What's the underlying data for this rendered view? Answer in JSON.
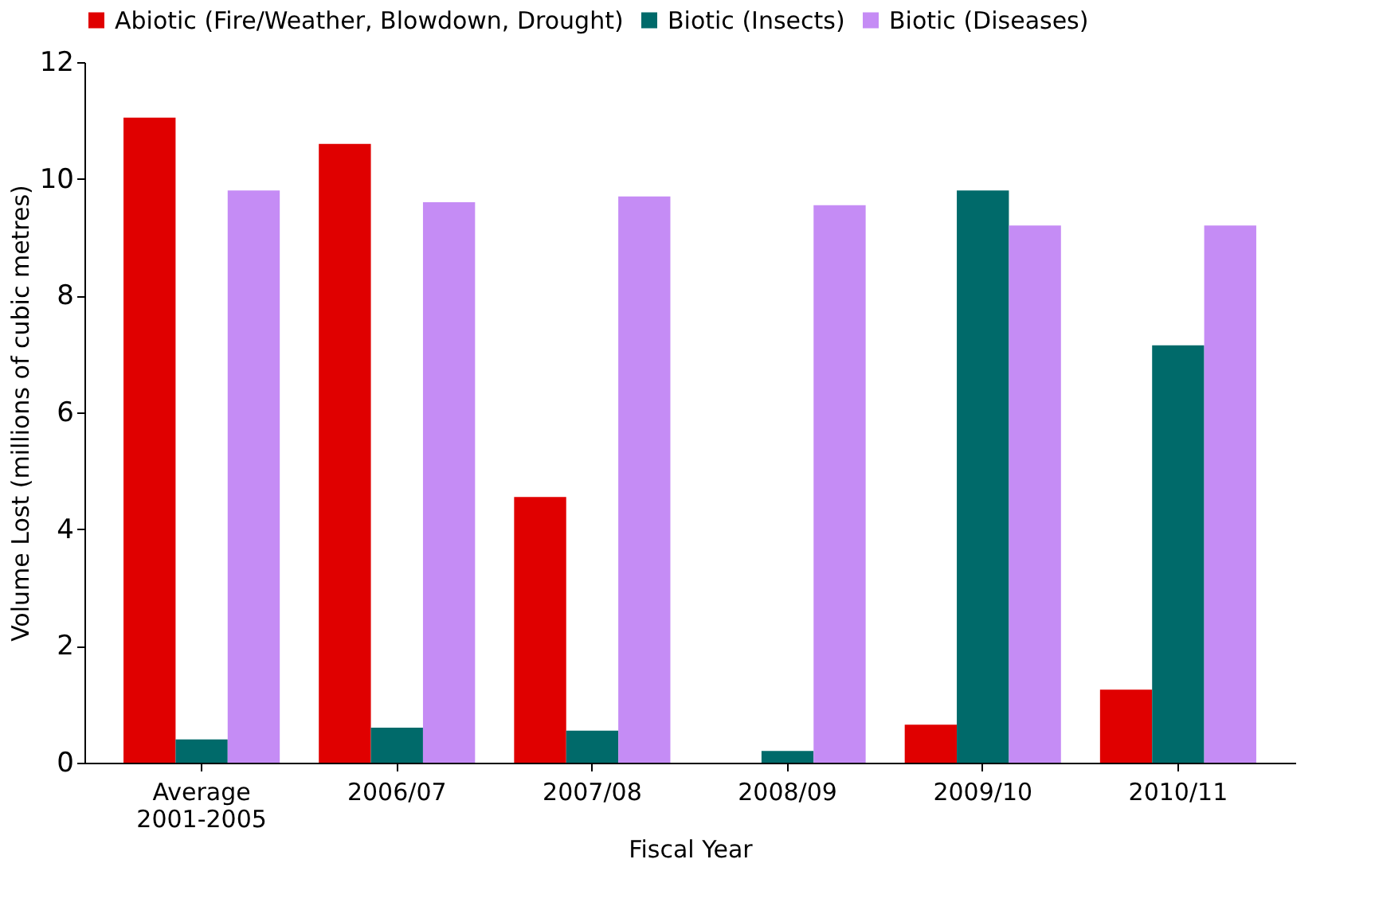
{
  "chart_data": {
    "type": "bar",
    "xlabel": "Fiscal Year",
    "ylabel": "Volume Lost (millions of cubic metres)",
    "categories": [
      "Average 2001-2005",
      "2006/07",
      "2007/08",
      "2008/09",
      "2009/10",
      "2010/11"
    ],
    "series": [
      {
        "name": "Abiotic (Fire/Weather, Blowdown, Drought)",
        "color": "#e00000",
        "values": [
          11.05,
          10.6,
          4.55,
          0,
          0.65,
          1.25
        ]
      },
      {
        "name": "Biotic (Insects)",
        "color": "#006a6a",
        "values": [
          0.4,
          0.6,
          0.55,
          0.2,
          9.8,
          7.15
        ]
      },
      {
        "name": "Biotic (Diseases)",
        "color": "#c58cf5",
        "values": [
          9.8,
          9.6,
          9.7,
          9.55,
          9.2,
          9.2
        ]
      }
    ],
    "ylim": [
      0,
      12
    ],
    "yticks": [
      0,
      2,
      4,
      6,
      8,
      10,
      12
    ],
    "grid": false,
    "legend": "top"
  }
}
